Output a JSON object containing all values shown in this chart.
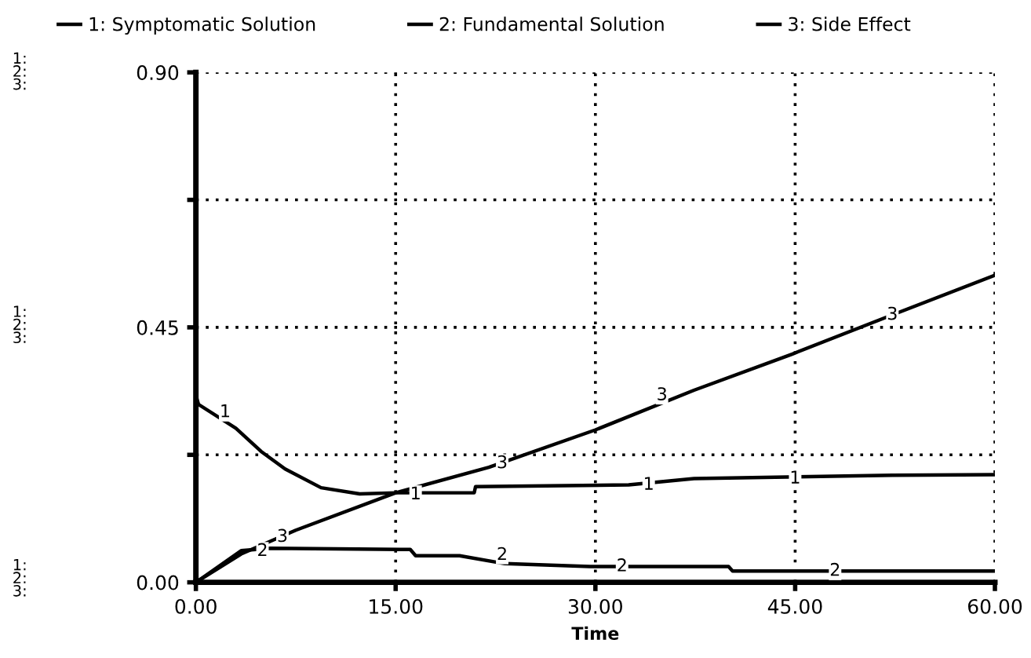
{
  "chart_data": {
    "type": "line",
    "xlabel": "Time",
    "xlim": [
      0,
      60
    ],
    "xticks": [
      {
        "value": 0,
        "label": "0.00"
      },
      {
        "value": 15,
        "label": "15.00"
      },
      {
        "value": 30,
        "label": "30.00"
      },
      {
        "value": 45,
        "label": "45.00"
      },
      {
        "value": 60,
        "label": "60.00"
      }
    ],
    "ylim": [
      0,
      0.9
    ],
    "yticks": [
      {
        "value": 0,
        "label": "0.00"
      },
      {
        "value": 0.225,
        "label": null
      },
      {
        "value": 0.45,
        "label": "0.45"
      },
      {
        "value": 0.675,
        "label": null
      },
      {
        "value": 0.9,
        "label": "0.90"
      }
    ],
    "grid": true,
    "legend": "top",
    "line_style": "solid",
    "marker": "none",
    "series": [
      {
        "name": "1: Symptomatic Solution",
        "color": "#000000",
        "x": [
          0,
          0.2,
          3,
          4.9,
          6.7,
          9.4,
          12.3,
          15,
          20.9,
          21,
          32.5,
          37.4,
          52.3,
          60
        ],
        "values": [
          0.33,
          0.314,
          0.272,
          0.231,
          0.2,
          0.167,
          0.156,
          0.158,
          0.158,
          0.169,
          0.172,
          0.183,
          0.189,
          0.19
        ]
      },
      {
        "name": "2: Fundamental Solution",
        "color": "#000000",
        "x": [
          0,
          3.4,
          5.6,
          16.1,
          16.5,
          19.8,
          23.2,
          29.6,
          40,
          40.3,
          60
        ],
        "values": [
          0,
          0.056,
          0.06,
          0.058,
          0.047,
          0.047,
          0.033,
          0.028,
          0.028,
          0.02,
          0.02
        ]
      },
      {
        "name": "3: Side Effect",
        "color": "#000000",
        "x": [
          0,
          3.4,
          7.5,
          15,
          22,
          30,
          37.4,
          44.8,
          52.3,
          60
        ],
        "values": [
          0,
          0.05,
          0.092,
          0.158,
          0.203,
          0.269,
          0.339,
          0.403,
          0.472,
          0.542
        ]
      }
    ],
    "annotations": [
      "1:\n2:\n3:",
      "1:\n2:\n3:",
      "1:\n2:\n3:",
      {
        "text": "1",
        "x": 2.2,
        "y": 0.3
      },
      {
        "text": "1",
        "x": 16.5,
        "y": 0.155
      },
      {
        "text": "1",
        "x": 34,
        "y": 0.172
      },
      {
        "text": "1",
        "x": 45,
        "y": 0.183
      },
      {
        "text": "2",
        "x": 5,
        "y": 0.055
      },
      {
        "text": "2",
        "x": 23,
        "y": 0.048
      },
      {
        "text": "2",
        "x": 32,
        "y": 0.028
      },
      {
        "text": "2",
        "x": 48,
        "y": 0.02
      },
      {
        "text": "3",
        "x": 6.5,
        "y": 0.08
      },
      {
        "text": "3",
        "x": 23,
        "y": 0.21
      },
      {
        "text": "3",
        "x": 35,
        "y": 0.33
      },
      {
        "text": "3",
        "x": 52.3,
        "y": 0.472
      }
    ]
  }
}
